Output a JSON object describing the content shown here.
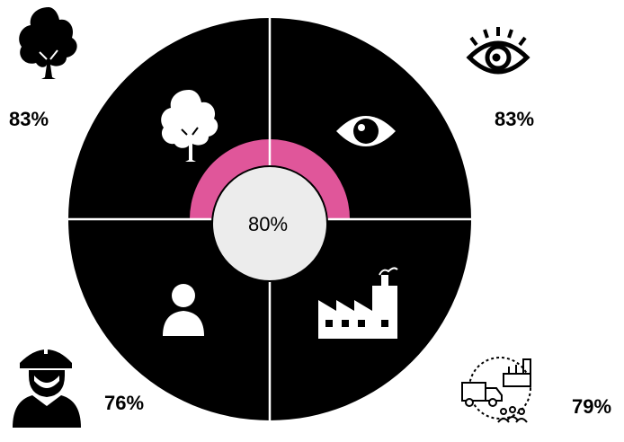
{
  "chart_data": {
    "type": "radial-quadrant",
    "center_label": "80%",
    "quadrants": [
      {
        "position": "top-left",
        "value": 83,
        "label": "83%",
        "icon": "tree-icon"
      },
      {
        "position": "top-right",
        "value": 83,
        "label": "83%",
        "icon": "eye-icon"
      },
      {
        "position": "bottom-right",
        "value": 79,
        "label": "79%",
        "icon": "supply-chain-icon",
        "inner_icon": "factory-icon"
      },
      {
        "position": "bottom-left",
        "value": 76,
        "label": "76%",
        "icon": "construction-worker-icon",
        "inner_icon": "person-icon"
      }
    ]
  },
  "colors": {
    "background": "#000000",
    "fill": "#e0569a",
    "center": "#ececec",
    "divider": "#ffffff"
  }
}
